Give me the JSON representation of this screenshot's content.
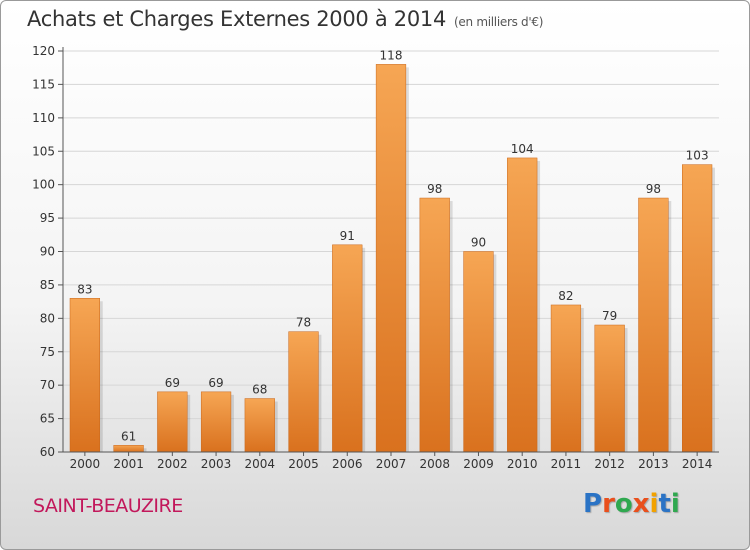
{
  "page": {
    "title": "Achats et Charges Externes 2000 à 2014",
    "subtitle": "(en milliers d'€)",
    "commune": "SAINT-BEAUZIRE",
    "logo": "Proxiti",
    "logo_colors": [
      "#2a73c5",
      "#e94f1c",
      "#2fa84f",
      "#e94f1c",
      "#f2a200",
      "#2a73c5",
      "#2fa84f"
    ]
  },
  "chart_data": {
    "type": "bar",
    "title": "Achats et Charges Externes 2000 à 2014",
    "subtitle": "(en milliers d'€)",
    "categories": [
      "2000",
      "2001",
      "2002",
      "2003",
      "2004",
      "2005",
      "2006",
      "2007",
      "2008",
      "2009",
      "2010",
      "2011",
      "2012",
      "2013",
      "2014"
    ],
    "values": [
      83,
      61,
      69,
      69,
      68,
      78,
      91,
      118,
      98,
      90,
      104,
      82,
      79,
      98,
      103
    ],
    "ylim": [
      60,
      120
    ],
    "yticks": [
      60,
      65,
      70,
      75,
      80,
      85,
      90,
      95,
      100,
      105,
      110,
      115,
      120
    ],
    "xlabel": "",
    "ylabel": "",
    "grid": true,
    "bar_color_light": "#f6a654",
    "bar_color_dark": "#d9711e"
  }
}
